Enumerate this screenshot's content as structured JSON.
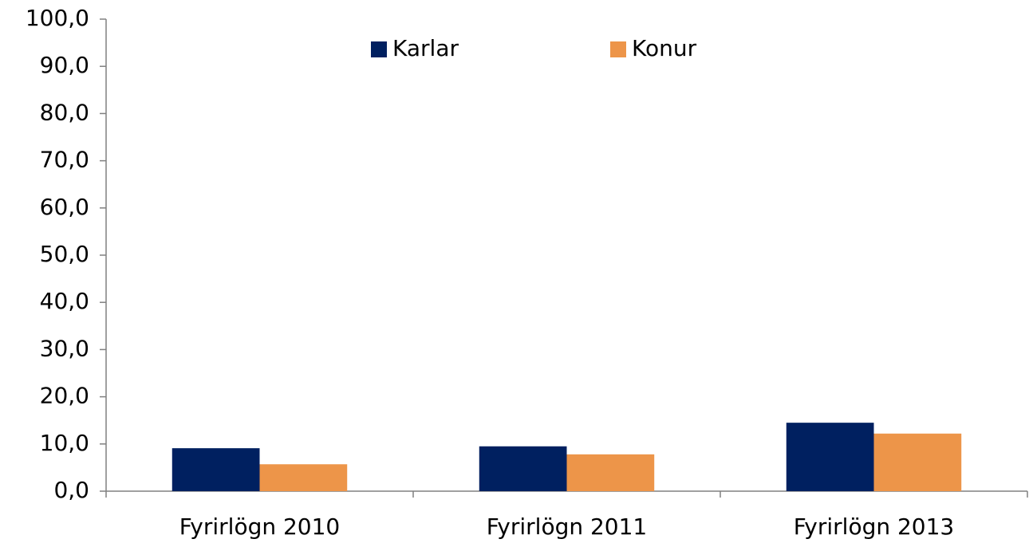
{
  "chart_data": {
    "type": "bar",
    "categories": [
      "Fyrirlögn 2010",
      "Fyrirlögn 2011",
      "Fyrirlögn 2013"
    ],
    "series": [
      {
        "name": "Karlar",
        "color": "#002060",
        "values": [
          9.1,
          9.5,
          14.5
        ]
      },
      {
        "name": "Konur",
        "color": "#ed9549",
        "values": [
          5.7,
          7.8,
          12.2
        ]
      }
    ],
    "ylim": [
      0,
      100
    ],
    "yticks": [
      {
        "value": 0,
        "label": "0,0"
      },
      {
        "value": 10,
        "label": "10,0"
      },
      {
        "value": 20,
        "label": "20,0"
      },
      {
        "value": 30,
        "label": "30,0"
      },
      {
        "value": 40,
        "label": "40,0"
      },
      {
        "value": 50,
        "label": "50,0"
      },
      {
        "value": 60,
        "label": "60,0"
      },
      {
        "value": 70,
        "label": "70,0"
      },
      {
        "value": 80,
        "label": "80,0"
      },
      {
        "value": 90,
        "label": "90,0"
      },
      {
        "value": 100,
        "label": "100,0"
      }
    ],
    "grid": false,
    "legend": "top"
  }
}
